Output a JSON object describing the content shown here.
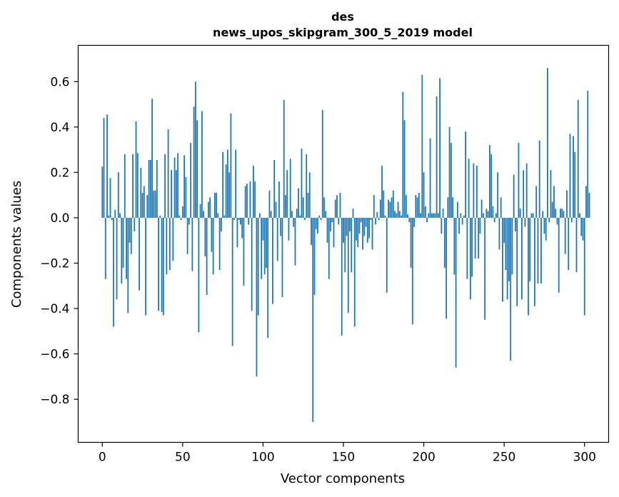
{
  "chart_data": {
    "type": "bar",
    "title": "des",
    "subtitle": "news_upos_skipgram_300_5_2019 model",
    "xlabel": "Vector components",
    "ylabel": "Components values",
    "xlim": [
      -15,
      315
    ],
    "ylim": [
      -0.99,
      0.76
    ],
    "xticks": [
      0,
      50,
      100,
      150,
      200,
      250,
      300
    ],
    "yticks": [
      -0.8,
      -0.6,
      -0.4,
      -0.2,
      0.0,
      0.2,
      0.4,
      0.6
    ],
    "ytick_labels": [
      "−0.8",
      "−0.6",
      "−0.4",
      "−0.2",
      "0.0",
      "0.2",
      "0.4",
      "0.6"
    ],
    "grid": false,
    "bar_color": "#1f77b4",
    "values": [
      0.225,
      0.44,
      -0.27,
      0.455,
      0.01,
      0.175,
      -0.01,
      -0.48,
      0.035,
      -0.36,
      0.2,
      0.02,
      -0.29,
      -0.22,
      0.28,
      -0.27,
      -0.42,
      -0.11,
      -0.16,
      0.28,
      -0.06,
      0.425,
      0.285,
      -0.32,
      0.22,
      0.11,
      0.14,
      -0.43,
      0.1,
      0.255,
      0.255,
      0.525,
      0.12,
      0.12,
      0.255,
      -0.41,
      0.01,
      -0.415,
      -0.43,
      0.28,
      -0.25,
      0.39,
      -0.23,
      0.21,
      -0.19,
      0.265,
      0.21,
      0.285,
      0.01,
      -0.01,
      0.05,
      0.275,
      0.18,
      -0.16,
      -0.03,
      0.33,
      -0.235,
      0.49,
      0.6,
      0.43,
      -0.505,
      0.06,
      0.47,
      0.03,
      -0.17,
      -0.34,
      0.07,
      0.09,
      -0.15,
      -0.25,
      0.11,
      0.11,
      0.02,
      -0.23,
      -0.06,
      0.29,
      0.01,
      0.235,
      0.3,
      0.2,
      0.46,
      -0.565,
      -0.01,
      0.3,
      -0.13,
      -0.01,
      -0.03,
      -0.09,
      -0.3,
      0.14,
      0.15,
      -0.03,
      0.16,
      -0.41,
      0.23,
      0.16,
      -0.7,
      -0.43,
      0.02,
      -0.27,
      -0.1,
      -0.25,
      -0.22,
      -0.53,
      0.12,
      0.03,
      -0.38,
      0.255,
      0.07,
      -0.19,
      0.16,
      -0.08,
      -0.35,
      0.52,
      0.1,
      0.21,
      -0.1,
      0.26,
      0.03,
      -0.04,
      -0.21,
      0.04,
      0.13,
      0.01,
      0.305,
      0.09,
      -0.01,
      0.28,
      0.11,
      0.2,
      -0.12,
      -0.9,
      -0.34,
      -0.05,
      -0.07,
      0.01,
      -0.01,
      0.475,
      0.09,
      0.03,
      -0.11,
      -0.27,
      -0.06,
      -0.02,
      -0.13,
      0.08,
      0.1,
      -0.03,
      0.11,
      -0.52,
      -0.11,
      -0.24,
      -0.08,
      -0.42,
      -0.06,
      -0.24,
      0.04,
      -0.48,
      -0.1,
      -0.13,
      -0.07,
      -0.02,
      -0.14,
      -0.08,
      -0.04,
      -0.11,
      -0.09,
      -0.01,
      -0.14,
      0.1,
      -0.03,
      0.025,
      -0.01,
      0.08,
      0.23,
      0.12,
      0.01,
      -0.33,
      0.08,
      0.07,
      0.09,
      0.12,
      0.03,
      0.02,
      0.07,
      0.03,
      0.01,
      0.555,
      0.43,
      0.1,
      0.015,
      -0.02,
      -0.22,
      -0.47,
      -0.04,
      0.1,
      0.09,
      0.11,
      0.02,
      0.63,
      0.2,
      0.05,
      -0.02,
      0.02,
      0.35,
      0.02,
      0.02,
      0.02,
      0.535,
      0.02,
      0.615,
      -0.07,
      0.04,
      -0.22,
      -0.445,
      0.09,
      0.4,
      0.33,
      0.09,
      -0.25,
      -0.66,
      0.07,
      -0.07,
      0.02,
      -0.03,
      0.01,
      0.38,
      -0.27,
      0.26,
      -0.36,
      -0.26,
      0.24,
      -0.18,
      0.23,
      -0.18,
      -0.07,
      0.08,
      0.02,
      -0.45,
      0.04,
      0.03,
      0.32,
      0.28,
      0.05,
      -0.02,
      0.02,
      0.2,
      -0.14,
      0.09,
      -0.37,
      -0.11,
      -0.23,
      -0.36,
      -0.28,
      -0.63,
      -0.25,
      0.19,
      -0.06,
      -0.39,
      0.33,
      0.04,
      -0.36,
      0.21,
      -0.04,
      0.24,
      -0.43,
      -0.28,
      0.02,
      0.02,
      -0.39,
      0.14,
      -0.29,
      0.34,
      -0.29,
      0.03,
      -0.07,
      -0.1,
      0.66,
      -0.02,
      0.21,
      0.07,
      0.14,
      0.04,
      -0.03,
      -0.33,
      0.04,
      0.04,
      0.03,
      -0.16,
      0.12,
      -0.23,
      0.37,
      -0.02,
      0.36,
      0.29,
      -0.24,
      0.52,
      0.02,
      -0.08,
      -0.1,
      -0.43,
      0.14,
      0.56,
      0.11
    ]
  }
}
